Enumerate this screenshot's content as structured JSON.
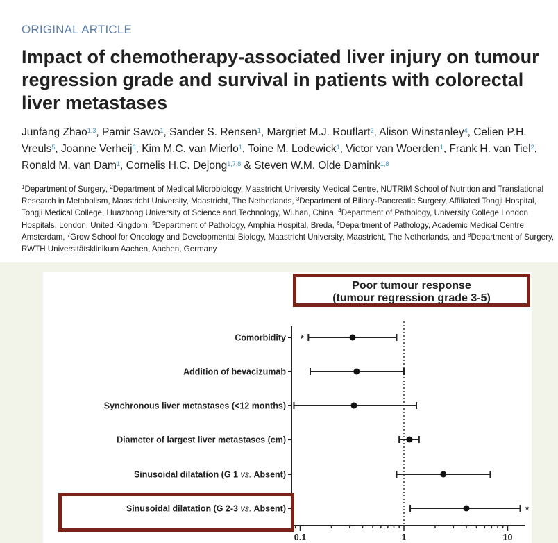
{
  "article": {
    "kicker": "ORIGINAL ARTICLE",
    "title": "Impact of chemotherapy-associated liver injury on tumour regression grade and survival in patients with colorectal liver metastases",
    "authors": [
      {
        "name": "Junfang Zhao",
        "sup": "1,3",
        "sep": ", "
      },
      {
        "name": "Pamir Sawo",
        "sup": "1",
        "sep": ", "
      },
      {
        "name": "Sander S. Rensen",
        "sup": "1",
        "sep": ", "
      },
      {
        "name": "Margriet M.J. Rouflart",
        "sup": "2",
        "sep": ", "
      },
      {
        "name": "Alison Winstanley",
        "sup": "4",
        "sep": ", "
      },
      {
        "name": "Celien P.H. Vreuls",
        "sup": "5",
        "sep": ", "
      },
      {
        "name": "Joanne Verheij",
        "sup": "6",
        "sep": ", "
      },
      {
        "name": "Kim M.C. van Mierlo",
        "sup": "1",
        "sep": ", "
      },
      {
        "name": "Toine M. Lodewick",
        "sup": "1",
        "sep": ", "
      },
      {
        "name": "Victor van Woerden",
        "sup": "1",
        "sep": ", "
      },
      {
        "name": "Frank H. van Tiel",
        "sup": "2",
        "sep": ", "
      },
      {
        "name": "Ronald M. van Dam",
        "sup": "1",
        "sep": ", "
      },
      {
        "name": "Cornelis H.C. Dejong",
        "sup": "1,7,8",
        "sep": " & "
      },
      {
        "name": "Steven W.M. Olde Damink",
        "sup": "1,8",
        "sep": ""
      }
    ],
    "affiliations": [
      {
        "sup": "1",
        "text": "Department of Surgery, "
      },
      {
        "sup": "2",
        "text": "Department of Medical Microbiology, Maastricht University Medical Centre, NUTRIM School of Nutrition and Translational Research in Metabolism, Maastricht University, Maastricht, The Netherlands, "
      },
      {
        "sup": "3",
        "text": "Department of Biliary-Pancreatic Surgery, Affiliated Tongji Hospital, Tongji Medical College, Huazhong University of Science and Technology, Wuhan, China, "
      },
      {
        "sup": "4",
        "text": "Department of Pathology, University College London Hospitals, London, United Kingdom, "
      },
      {
        "sup": "5",
        "text": "Department of Pathology, Amphia Hospital, Breda, "
      },
      {
        "sup": "6",
        "text": "Department of Pathology, Academic Medical Centre, Amsterdam, "
      },
      {
        "sup": "7",
        "text": "Grow School for Oncology and Developmental Biology, Maastricht University, Maastricht, The Netherlands, and "
      },
      {
        "sup": "8",
        "text": "Department of Surgery, RWTH Universitätsklinikum Aachen, Aachen, Germany"
      }
    ]
  },
  "colors": {
    "highlight_box": "#7a2318",
    "kicker": "#5b7ea6",
    "superscript": "#3b8fc4"
  },
  "chart_data": {
    "type": "forest",
    "title_line1": "Poor tumour response",
    "title_line2": "(tumour regression grade 3-5)",
    "xscale": "log",
    "xlim": [
      0.085,
      15
    ],
    "reference_line": 1,
    "xticks": [
      {
        "value": 0.1,
        "label": "0.1"
      },
      {
        "value": 1,
        "label": "1"
      },
      {
        "value": 10,
        "label": "10"
      }
    ],
    "rows": [
      {
        "label": "Comorbidity",
        "label_italic": "",
        "label_end": "",
        "estimate": 0.32,
        "lower": 0.12,
        "upper": 0.85,
        "marker_left": "*",
        "marker_right": ""
      },
      {
        "label": "Addition of bevacizumab",
        "label_italic": "",
        "label_end": "",
        "estimate": 0.35,
        "lower": 0.125,
        "upper": 1.0,
        "marker_left": "",
        "marker_right": ""
      },
      {
        "label": "Synchronous liver metastases (<12 months)",
        "label_italic": "",
        "label_end": "",
        "estimate": 0.33,
        "lower": 0.087,
        "upper": 1.32,
        "marker_left": "",
        "marker_right": ""
      },
      {
        "label": "Diameter of largest liver metastases (cm)",
        "label_italic": "",
        "label_end": "",
        "estimate": 1.13,
        "lower": 0.9,
        "upper": 1.4,
        "marker_left": "",
        "marker_right": ""
      },
      {
        "label": "Sinusoidal dilatation (G 1 ",
        "label_italic": "vs.",
        "label_end": " Absent)",
        "estimate": 2.4,
        "lower": 0.85,
        "upper": 6.8,
        "marker_left": "",
        "marker_right": ""
      },
      {
        "label": "Sinusoidal dilatation (G 2-3 ",
        "label_italic": "vs.",
        "label_end": " Absent)",
        "estimate": 4.0,
        "lower": 1.15,
        "upper": 13.2,
        "marker_left": "",
        "marker_right": "*"
      }
    ]
  }
}
